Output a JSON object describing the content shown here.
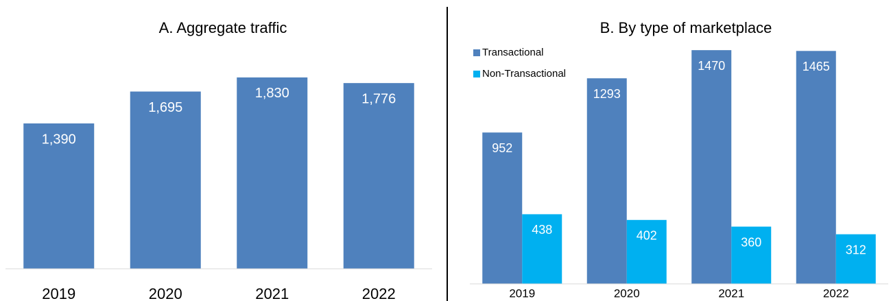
{
  "chart_data": [
    {
      "type": "bar",
      "title": "A.   Aggregate traffic",
      "categories": [
        "2019",
        "2020",
        "2021",
        "2022"
      ],
      "values": [
        1390,
        1695,
        1830,
        1776
      ],
      "value_labels": [
        "1,390",
        "1,695",
        "1,830",
        "1,776"
      ],
      "color": "#4f81bd",
      "ylim": [
        0,
        2000
      ]
    },
    {
      "type": "grouped_bar",
      "title": "B. By type of marketplace",
      "categories": [
        "2019",
        "2020",
        "2021",
        "2022"
      ],
      "series": [
        {
          "name": "Transactional",
          "color": "#4f81bd",
          "values": [
            952,
            1293,
            1470,
            1465
          ]
        },
        {
          "name": "Non-Transactional",
          "color": "#00b0f0",
          "values": [
            438,
            402,
            360,
            312
          ]
        }
      ],
      "ylim": [
        0,
        1600
      ],
      "legend": "top-left"
    }
  ]
}
